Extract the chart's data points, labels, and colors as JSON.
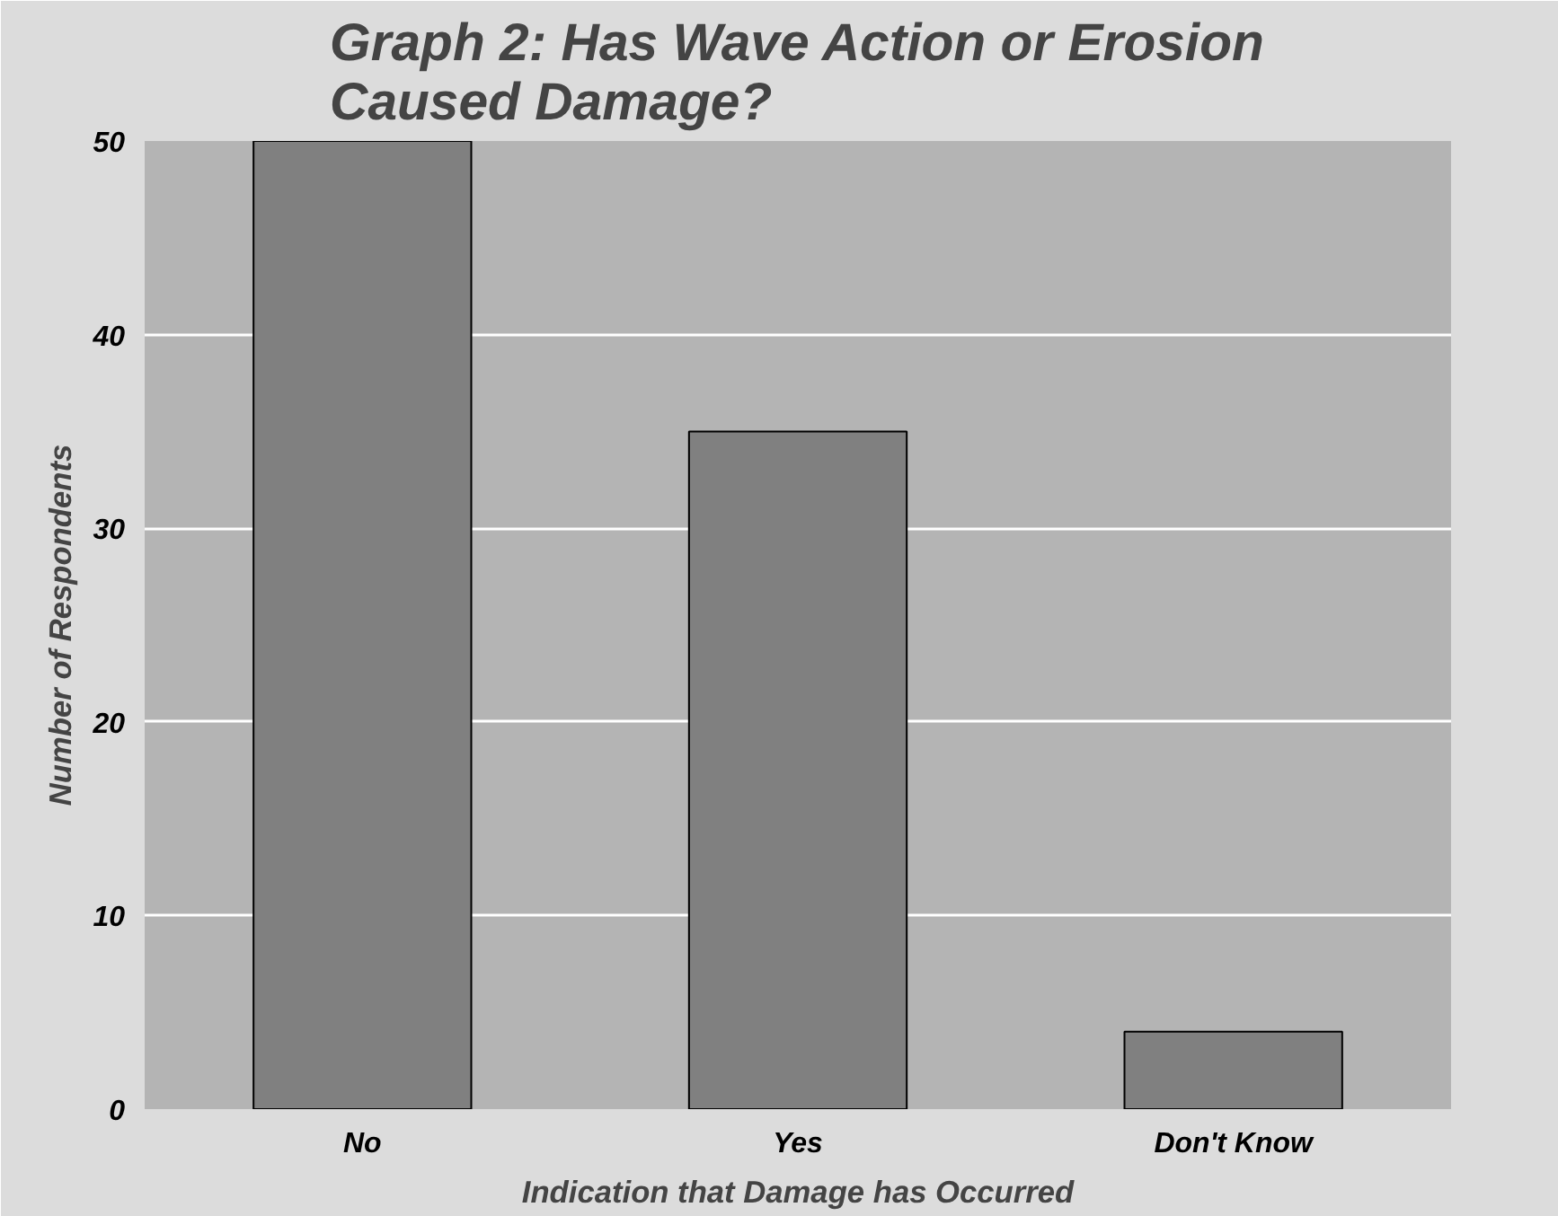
{
  "chart_data": {
    "type": "bar",
    "title": "Graph 2: Has Wave Action or Erosion\nCaused Damage?",
    "xlabel": "Indication that Damage has Occurred",
    "ylabel": "Number of Respondents",
    "categories": [
      "No",
      "Yes",
      "Don't Know"
    ],
    "values": [
      50,
      35,
      4
    ],
    "color": "#808080",
    "ylim": [
      0,
      50
    ],
    "yticks": [
      0,
      10,
      20,
      30,
      40,
      50
    ],
    "grid": "y"
  }
}
